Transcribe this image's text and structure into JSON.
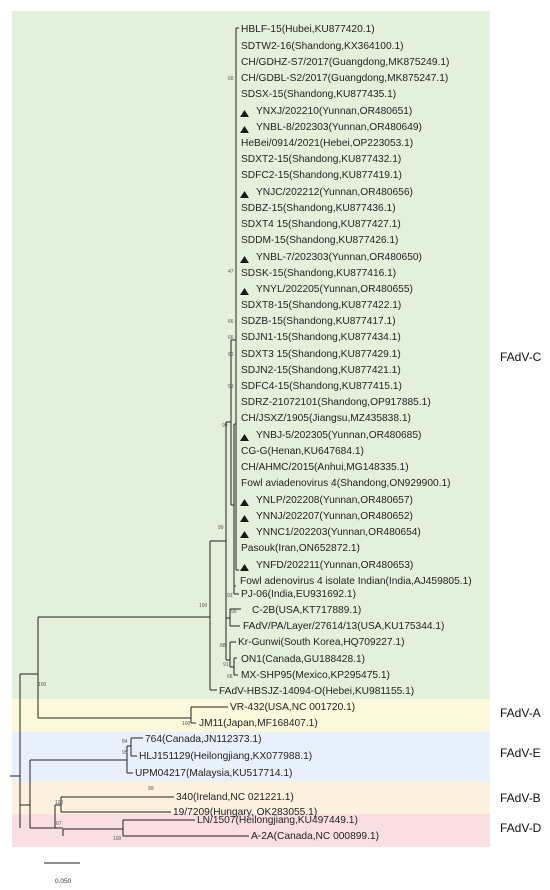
{
  "clades": [
    {
      "name": "FAdV-C",
      "color": "#e3f1dc"
    },
    {
      "name": "FAdV-A",
      "color": "#fcf8dc"
    },
    {
      "name": "FAdV-E",
      "color": "#e8f1fb"
    },
    {
      "name": "FAdV-B",
      "color": "#fcf0df"
    },
    {
      "name": "FAdV-D",
      "color": "#f9dfe2"
    }
  ],
  "taxa": [
    {
      "label": "HBLF-15(Hubei,KU877420.1)",
      "marker": false
    },
    {
      "label": "SDTW2-16(Shandong,KX364100.1)",
      "marker": false
    },
    {
      "label": "CH/GDHZ-S7/2017(Guangdong,MK875249.1)",
      "marker": false
    },
    {
      "label": "CH/GDBL-S2/2017(Guangdong,MK875247.1)",
      "marker": false
    },
    {
      "label": "SDSX-15(Shandong,KU877435.1)",
      "marker": false
    },
    {
      "label": "YNXJ/202210(Yunnan,OR480651)",
      "marker": true
    },
    {
      "label": "YNBL-8/202303(Yunnan,OR480649)",
      "marker": true
    },
    {
      "label": "HeBei/0914/2021(Hebei,OP223053.1)",
      "marker": false
    },
    {
      "label": "SDXT2-15(Shandong,KU877432.1)",
      "marker": false
    },
    {
      "label": "SDFC2-15(Shandong,KU877419.1)",
      "marker": false
    },
    {
      "label": "YNJC/202212(Yunnan,OR480656)",
      "marker": true
    },
    {
      "label": "SDBZ-15(Shandong,KU877436.1)",
      "marker": false
    },
    {
      "label": "SDXT4 15(Shandong,KU877427.1)",
      "marker": false
    },
    {
      "label": "SDDM-15(Shandong,KU877426.1)",
      "marker": false
    },
    {
      "label": "YNBL-7/202303(Yunnan,OR480650)",
      "marker": true
    },
    {
      "label": "SDSK-15(Shandong,KU877416.1)",
      "marker": false
    },
    {
      "label": "YNYL/202205(Yunnan,OR480655)",
      "marker": true
    },
    {
      "label": "SDXT8-15(Shandong,KU877422.1)",
      "marker": false
    },
    {
      "label": "SDZB-15(Shandong,KU877417.1)",
      "marker": false
    },
    {
      "label": "SDJN1-15(Shandong,KU877434.1)",
      "marker": false
    },
    {
      "label": "SDXT3 15(Shandong,KU877429.1)",
      "marker": false
    },
    {
      "label": "SDJN2-15(Shandong,KU877421.1)",
      "marker": false
    },
    {
      "label": "SDFC4-15(Shandong,KU877415.1)",
      "marker": false
    },
    {
      "label": "SDRZ-21072101(Shandong,OP917885.1)",
      "marker": false
    },
    {
      "label": "CH/JSXZ/1905(Jiangsu,MZ435838.1)",
      "marker": false
    },
    {
      "label": "YNBJ-5/202305(Yunnan,OR480685)",
      "marker": true
    },
    {
      "label": "CG-G(Henan,KU647684.1)",
      "marker": false
    },
    {
      "label": "CH/AHMC/2015(Anhui,MG148335.1)",
      "marker": false
    },
    {
      "label": "Fowl aviadenovirus 4(Shandong,ON929900.1)",
      "marker": false
    },
    {
      "label": "YNLP/202208(Yunnan,OR480657)",
      "marker": true
    },
    {
      "label": "YNNJ/202207(Yunnan,OR480652)",
      "marker": true
    },
    {
      "label": "YNNC1/202203(Yunnan,OR480654)",
      "marker": true
    },
    {
      "label": "Pasouk(Iran,ON652872.1)",
      "marker": false
    },
    {
      "label": "YNFD/202211(Yunnan,OR480653)",
      "marker": true
    },
    {
      "label": "Fowl adenovirus 4 isolate Indian(India,AJ459805.1)",
      "marker": false
    },
    {
      "label": "PJ-06(India,EU931692.1)",
      "marker": false
    },
    {
      "label": "C-2B(USA,KT717889.1)",
      "marker": false
    },
    {
      "label": "FAdV/PA/Layer/27614/13(USA,KU175344.1)",
      "marker": false
    },
    {
      "label": "Kr-Gunwi(South Korea,HQ709227.1)",
      "marker": false
    },
    {
      "label": "ON1(Canada,GU188428.1)",
      "marker": false
    },
    {
      "label": "MX-SHP95(Mexico,KP295475.1)",
      "marker": false
    },
    {
      "label": "FAdV-HBSJZ-14094-O(Hebei,KU981155.1)",
      "marker": false
    },
    {
      "label": "VR-432(USA,NC 001720.1)",
      "marker": false
    },
    {
      "label": "JM11(Japan,MF168407.1)",
      "marker": false
    },
    {
      "label": "764(Canada,JN112373.1)",
      "marker": false
    },
    {
      "label": "HLJ151129(Heilongjiang,KX077988.1)",
      "marker": false
    },
    {
      "label": "UPM04217(Malaysia,KU517714.1)",
      "marker": false
    },
    {
      "label": "340(Ireland,NC 021221.1)",
      "marker": false
    },
    {
      "label": "19/7209(Hungary, OK283055.1)",
      "marker": false
    },
    {
      "label": "LN/1507(Heilongjiang,KU497449.1)",
      "marker": false
    },
    {
      "label": "A-2A(Canada,NC 000899.1)",
      "marker": false
    }
  ],
  "bootstrap": [
    "60",
    "47",
    "66",
    "66",
    "66",
    "59",
    "99",
    "99",
    "100",
    "93",
    "99",
    "88",
    "91",
    "68",
    "100",
    "100",
    "84",
    "95",
    "99",
    "100",
    "67",
    "100"
  ],
  "scale_bar_label": "0.050"
}
